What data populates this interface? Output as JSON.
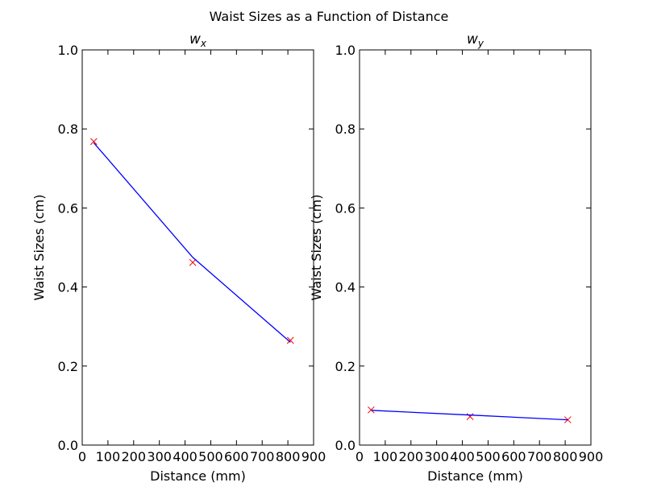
{
  "figure": {
    "suptitle": "Waist Sizes as a Function of Distance"
  },
  "chart_data": [
    {
      "type": "line",
      "title": "w_x",
      "title_display": {
        "base": "w",
        "sub": "x"
      },
      "xlabel": "Distance (mm)",
      "ylabel": "Waist Sizes (cm)",
      "xlim": [
        0,
        900
      ],
      "ylim": [
        0.0,
        1.0
      ],
      "xticks": [
        0,
        100,
        200,
        300,
        400,
        500,
        600,
        700,
        800,
        900
      ],
      "xtick_labels": [
        "0",
        "100",
        "200",
        "300",
        "400",
        "500",
        "600",
        "700",
        "800",
        "900"
      ],
      "yticks": [
        0.0,
        0.2,
        0.4,
        0.6,
        0.8,
        1.0
      ],
      "ytick_labels": [
        "0.0",
        "0.2",
        "0.4",
        "0.6",
        "0.8",
        "1.0"
      ],
      "grid": false,
      "series": [
        {
          "kind": "markers",
          "marker": "x",
          "color": "#ff0000",
          "points": [
            {
              "x": 45,
              "y": 0.768
            },
            {
              "x": 430,
              "y": 0.462
            },
            {
              "x": 810,
              "y": 0.265
            }
          ]
        },
        {
          "kind": "line",
          "color": "#0000ff",
          "points": [
            {
              "x": 45,
              "y": 0.765
            },
            {
              "x": 430,
              "y": 0.475
            },
            {
              "x": 810,
              "y": 0.26
            }
          ]
        }
      ]
    },
    {
      "type": "line",
      "title": "w_y",
      "title_display": {
        "base": "w",
        "sub": "y"
      },
      "xlabel": "Distance (mm)",
      "ylabel": "Waist Sizes (cm)",
      "xlim": [
        0,
        900
      ],
      "ylim": [
        0.0,
        1.0
      ],
      "xticks": [
        0,
        100,
        200,
        300,
        400,
        500,
        600,
        700,
        800,
        900
      ],
      "xtick_labels": [
        "0",
        "100",
        "200",
        "300",
        "400",
        "500",
        "600",
        "700",
        "800",
        "900"
      ],
      "yticks": [
        0.0,
        0.2,
        0.4,
        0.6,
        0.8,
        1.0
      ],
      "ytick_labels": [
        "0.0",
        "0.2",
        "0.4",
        "0.6",
        "0.8",
        "1.0"
      ],
      "grid": false,
      "series": [
        {
          "kind": "markers",
          "marker": "x",
          "color": "#ff0000",
          "points": [
            {
              "x": 45,
              "y": 0.089
            },
            {
              "x": 430,
              "y": 0.072
            },
            {
              "x": 810,
              "y": 0.064
            }
          ]
        },
        {
          "kind": "line",
          "color": "#0000ff",
          "points": [
            {
              "x": 45,
              "y": 0.088
            },
            {
              "x": 430,
              "y": 0.076
            },
            {
              "x": 810,
              "y": 0.064
            }
          ]
        }
      ]
    }
  ]
}
